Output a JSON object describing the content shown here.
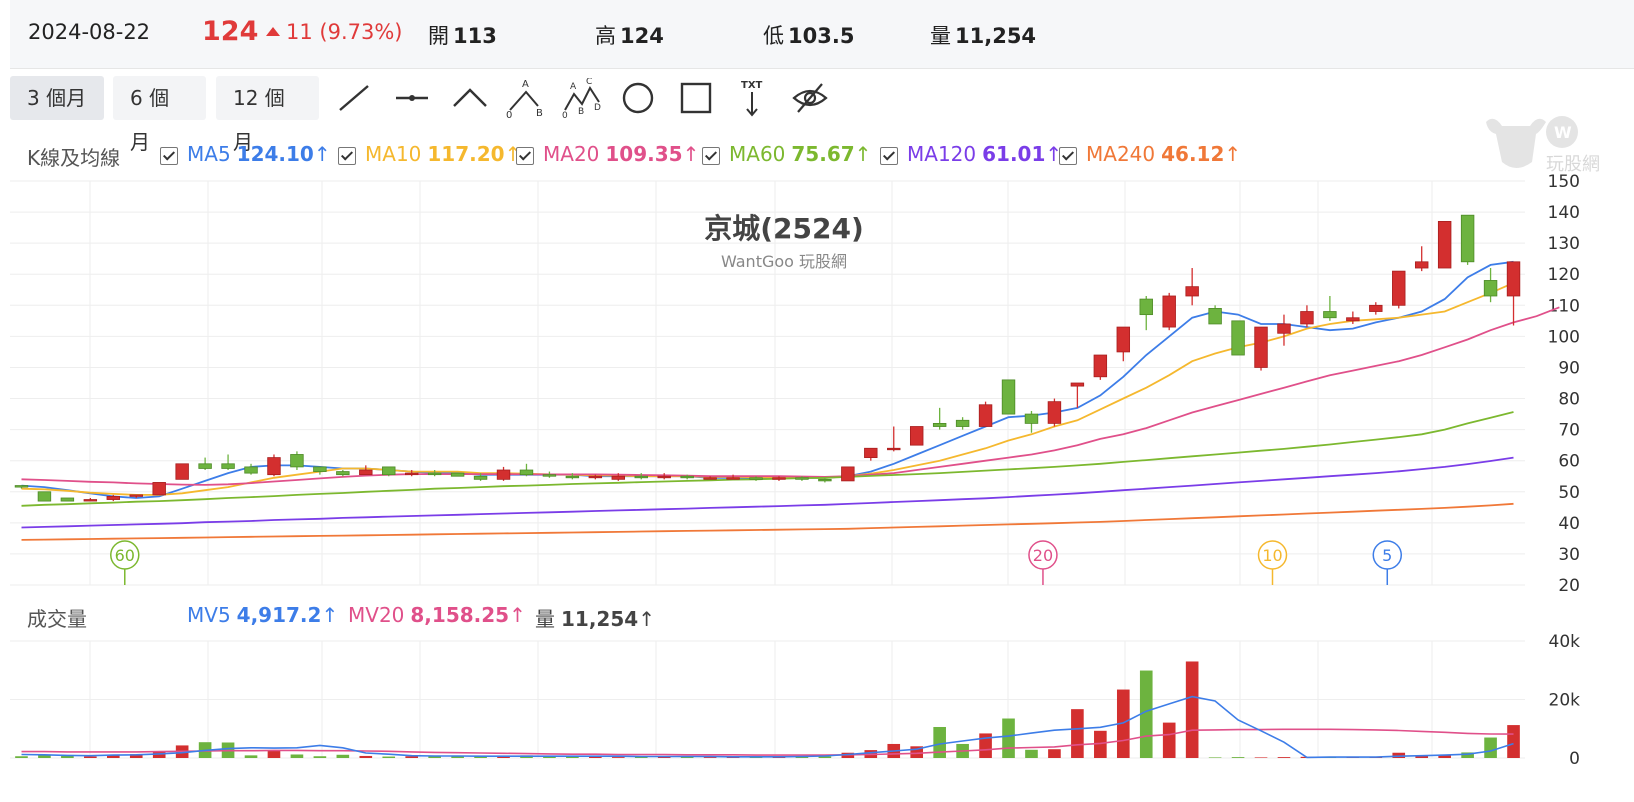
{
  "header": {
    "date": "2024-08-22",
    "price": "124",
    "change": "11 (9.73%)",
    "open_label": "開",
    "open": "113",
    "high_label": "高",
    "high": "124",
    "low_label": "低",
    "low": "103.5",
    "vol_label": "量",
    "vol": "11,254"
  },
  "toolbar": {
    "periods": [
      "3 個月",
      "6 個月",
      "12 個月"
    ],
    "tools": [
      "line-tool-icon",
      "horizontal-line-tool-icon",
      "angle-tool-icon",
      "abc-pattern-tool-icon",
      "abcd-pattern-tool-icon",
      "circle-tool-icon",
      "rectangle-tool-icon",
      "text-tool-icon",
      "hide-eye-icon"
    ],
    "tool_letters": {
      "a": "A",
      "b": "B",
      "c": "C",
      "d": "D",
      "zero": "0",
      "txt": "TXT"
    }
  },
  "watermark": {
    "brand": "玩股網"
  },
  "kline_legend": {
    "title": "K線及均線",
    "items": [
      {
        "name": "MA5",
        "value": "124.10",
        "arrow": "↑",
        "color": "#3d7de8"
      },
      {
        "name": "MA10",
        "value": "117.20",
        "arrow": "↑",
        "color": "#f5b82e"
      },
      {
        "name": "MA20",
        "value": "109.35",
        "arrow": "↑",
        "color": "#e0508a"
      },
      {
        "name": "MA60",
        "value": "75.67",
        "arrow": "↑",
        "color": "#7cb82f"
      },
      {
        "name": "MA120",
        "value": "61.01",
        "arrow": "↑",
        "color": "#7a3de8"
      },
      {
        "name": "MA240",
        "value": "46.12",
        "arrow": "↑",
        "color": "#f07838"
      }
    ]
  },
  "volume_legend": {
    "title": "成交量",
    "items": [
      {
        "name": "MV5",
        "value": "4,917.2",
        "arrow": "↑",
        "color": "#3d7de8"
      },
      {
        "name": "MV20",
        "value": "8,158.25",
        "arrow": "↑",
        "color": "#e0508a"
      },
      {
        "name": "量",
        "value": "11,254",
        "arrow": "↑",
        "color": "#444444"
      }
    ]
  },
  "colors": {
    "up": "#d32f2f",
    "down": "#6db33f",
    "grid": "#eeeeee"
  },
  "chart_data": [
    {
      "type": "candlestick",
      "title": "京城(2524)",
      "subtitle": "WantGoo 玩股網",
      "ylim": [
        20,
        150
      ],
      "yticks": [
        20,
        30,
        40,
        50,
        60,
        70,
        80,
        90,
        100,
        110,
        120,
        130,
        140,
        150
      ],
      "candles": [
        [
          52,
          52,
          51,
          51.5
        ],
        [
          50,
          50,
          47,
          47
        ],
        [
          48,
          48,
          47,
          47
        ],
        [
          47.5,
          48,
          47,
          47.5
        ],
        [
          47.5,
          49,
          47,
          48.5
        ],
        [
          48.5,
          49,
          48,
          49
        ],
        [
          49,
          53,
          49,
          53
        ],
        [
          54,
          59,
          54,
          59
        ],
        [
          59,
          61,
          57,
          57.5
        ],
        [
          59,
          62,
          57,
          57.5
        ],
        [
          58,
          59,
          55.5,
          56
        ],
        [
          55.5,
          62,
          55,
          61
        ],
        [
          62,
          63,
          57,
          58
        ],
        [
          58,
          58,
          55.5,
          56.5
        ],
        [
          56.5,
          57,
          55,
          55.5
        ],
        [
          55.5,
          58.5,
          55.5,
          57
        ],
        [
          58,
          58,
          55,
          55.5
        ],
        [
          55.5,
          57,
          55,
          56
        ],
        [
          56,
          57,
          55,
          55.5
        ],
        [
          56,
          56,
          55,
          55
        ],
        [
          55,
          56,
          53.5,
          54
        ],
        [
          54,
          58,
          53.5,
          57
        ],
        [
          57,
          59,
          55,
          55.5
        ],
        [
          55.5,
          56.5,
          54.5,
          55
        ],
        [
          55,
          56,
          54,
          54.5
        ],
        [
          54.5,
          55.5,
          54,
          55
        ],
        [
          54,
          56,
          53.5,
          55
        ],
        [
          55,
          56,
          54,
          54.5
        ],
        [
          54.5,
          56,
          54,
          55
        ],
        [
          55,
          55.5,
          54,
          54.5
        ],
        [
          54.5,
          55,
          54,
          54.5
        ],
        [
          54.5,
          55.5,
          54,
          54.5
        ],
        [
          54.5,
          55,
          53.5,
          54
        ],
        [
          54,
          55,
          53.5,
          54.5
        ],
        [
          54.5,
          55,
          53.5,
          54
        ],
        [
          54,
          54.5,
          53,
          53.5
        ],
        [
          53.5,
          58,
          53.5,
          58
        ],
        [
          61,
          64,
          60,
          64
        ],
        [
          64,
          71,
          63,
          64
        ],
        [
          65,
          71,
          65,
          71
        ],
        [
          72,
          77,
          70,
          71
        ],
        [
          73,
          74,
          70,
          71
        ],
        [
          71,
          79,
          71,
          78
        ],
        [
          86,
          86,
          75,
          75
        ],
        [
          75,
          76,
          69,
          72
        ],
        [
          72,
          80,
          71,
          79
        ],
        [
          84,
          85,
          77,
          85
        ],
        [
          87,
          94,
          86,
          94
        ],
        [
          95,
          103,
          92,
          103
        ],
        [
          112,
          113,
          102,
          107
        ],
        [
          103,
          114,
          102,
          113
        ],
        [
          113,
          122,
          110,
          116
        ],
        [
          109,
          110,
          104,
          104
        ],
        [
          105,
          105,
          94,
          94
        ],
        [
          90,
          103,
          89,
          103
        ],
        [
          101,
          107,
          97,
          104
        ],
        [
          104,
          110,
          103,
          108
        ],
        [
          108,
          113,
          105,
          106
        ],
        [
          105,
          108,
          104,
          106
        ],
        [
          108,
          111,
          107,
          110
        ],
        [
          110,
          121,
          109,
          121
        ],
        [
          122,
          129,
          121,
          124
        ],
        [
          122,
          137,
          122,
          137
        ],
        [
          139,
          139,
          123,
          124
        ],
        [
          118,
          122,
          111,
          113
        ],
        [
          113,
          124,
          103.5,
          124
        ]
      ],
      "ma": {
        "MA5": [
          52,
          51.5,
          50.5,
          49.5,
          48.5,
          48,
          48.5,
          51,
          53.5,
          56,
          58,
          58.5,
          58.5,
          58,
          57.5,
          57.5,
          57,
          56.5,
          56,
          56,
          55.5,
          55.5,
          55.5,
          55.5,
          55.5,
          55,
          55,
          55,
          55,
          55,
          54.5,
          54.5,
          54.5,
          54.5,
          54.5,
          54.5,
          55,
          56.5,
          59,
          62,
          65,
          68,
          71,
          74,
          74.5,
          75.5,
          77,
          81,
          87,
          94,
          100,
          106,
          108,
          107,
          104,
          104,
          103,
          102,
          102.5,
          104.5,
          106,
          108,
          112,
          119,
          123,
          124
        ],
        "MA10": [
          51,
          50.8,
          50.3,
          49.7,
          49.3,
          49,
          49,
          49.5,
          50.5,
          51.5,
          53,
          54.5,
          55.5,
          56.5,
          57.5,
          57.5,
          57,
          56.5,
          56.5,
          56.5,
          56,
          56,
          55.8,
          55.6,
          55.5,
          55.3,
          55.2,
          55,
          55,
          55,
          54.8,
          54.8,
          54.7,
          54.6,
          54.6,
          54.5,
          55,
          55.8,
          57,
          58.5,
          60,
          62,
          64,
          66.5,
          68.5,
          71,
          73,
          76.5,
          80,
          83.5,
          87.5,
          92,
          94.5,
          96.5,
          98,
          100,
          102.5,
          104,
          105,
          105.5,
          106,
          107,
          108,
          111,
          114,
          117.2
        ],
        "MA20": [
          54,
          53.8,
          53.5,
          53.2,
          53,
          52.7,
          52.5,
          52.3,
          52.2,
          52.4,
          52.8,
          53.3,
          53.8,
          54.3,
          54.8,
          55.2,
          55.5,
          55.7,
          55.7,
          55.7,
          55.7,
          55.7,
          55.6,
          55.6,
          55.6,
          55.6,
          55.5,
          55.4,
          55.3,
          55.2,
          55,
          55,
          55,
          55,
          54.9,
          54.8,
          55,
          55.5,
          56,
          57,
          58,
          59,
          60,
          61,
          62,
          63.3,
          65,
          67,
          68.5,
          70.5,
          73,
          75.5,
          77.5,
          79.5,
          81.5,
          83.5,
          85.5,
          87.5,
          89,
          90.5,
          92,
          94,
          96.5,
          99,
          102,
          104.5,
          106.5,
          109.35
        ],
        "MA60": [
          45.5,
          45.8,
          46,
          46.3,
          46.5,
          46.8,
          47,
          47.3,
          47.6,
          48,
          48.3,
          48.6,
          49,
          49.3,
          49.6,
          50,
          50.3,
          50.6,
          51,
          51.2,
          51.5,
          51.8,
          52,
          52.2,
          52.5,
          52.7,
          52.9,
          53.1,
          53.3,
          53.5,
          53.7,
          53.9,
          54,
          54.2,
          54.4,
          54.5,
          54.8,
          55.1,
          55.4,
          55.7,
          56,
          56.4,
          56.8,
          57.2,
          57.6,
          58,
          58.5,
          59,
          59.6,
          60.2,
          60.8,
          61.4,
          62,
          62.6,
          63.2,
          63.8,
          64.5,
          65.2,
          66,
          66.8,
          67.6,
          68.5,
          70,
          72,
          73.8,
          75.67
        ],
        "MA120": [
          38.5,
          38.7,
          38.9,
          39.1,
          39.3,
          39.5,
          39.7,
          39.9,
          40.2,
          40.4,
          40.6,
          40.9,
          41.1,
          41.3,
          41.6,
          41.8,
          42,
          42.2,
          42.4,
          42.6,
          42.8,
          43,
          43.2,
          43.4,
          43.6,
          43.8,
          44,
          44.2,
          44.4,
          44.6,
          44.8,
          45,
          45.2,
          45.4,
          45.6,
          45.8,
          46.1,
          46.4,
          46.7,
          47,
          47.3,
          47.6,
          47.9,
          48.3,
          48.7,
          49.1,
          49.5,
          50,
          50.5,
          51,
          51.5,
          52,
          52.5,
          53,
          53.5,
          54,
          54.5,
          55,
          55.5,
          56,
          56.6,
          57.3,
          58,
          58.9,
          59.9,
          61.01
        ],
        "MA240": [
          34.5,
          34.6,
          34.7,
          34.8,
          34.9,
          35,
          35.1,
          35.2,
          35.3,
          35.4,
          35.5,
          35.6,
          35.7,
          35.8,
          35.9,
          36,
          36.1,
          36.2,
          36.3,
          36.4,
          36.5,
          36.6,
          36.7,
          36.8,
          36.9,
          37,
          37.1,
          37.2,
          37.3,
          37.4,
          37.5,
          37.6,
          37.7,
          37.8,
          37.9,
          38,
          38.1,
          38.3,
          38.5,
          38.7,
          38.9,
          39.1,
          39.3,
          39.5,
          39.7,
          39.9,
          40.1,
          40.3,
          40.6,
          40.9,
          41.2,
          41.5,
          41.8,
          42.1,
          42.4,
          42.7,
          43,
          43.3,
          43.6,
          43.9,
          44.2,
          44.5,
          44.8,
          45.2,
          45.6,
          46.12
        ]
      },
      "markers": [
        {
          "label": "60",
          "index": 4.5,
          "color": "#7cb82f"
        },
        {
          "label": "20",
          "index": 44.5,
          "color": "#e0508a"
        },
        {
          "label": "10",
          "index": 54.5,
          "color": "#f5b82e"
        },
        {
          "label": "5",
          "index": 59.5,
          "color": "#3d7de8"
        }
      ]
    },
    {
      "type": "bar",
      "title": "成交量",
      "ylim": [
        0,
        40000
      ],
      "yticks": [
        0,
        20000,
        40000
      ],
      "ytick_labels": [
        "0",
        "20k",
        "40k"
      ],
      "volume": [
        600,
        1200,
        800,
        500,
        900,
        1300,
        2300,
        4300,
        5400,
        5300,
        900,
        2500,
        1200,
        600,
        1100,
        700,
        500,
        600,
        700,
        600,
        500,
        400,
        900,
        700,
        500,
        600,
        300,
        400,
        500,
        600,
        300,
        400,
        300,
        300,
        400,
        500,
        1800,
        2700,
        4800,
        4000,
        10600,
        4800,
        8400,
        13500,
        2800,
        3000,
        16700,
        9300,
        23400,
        29900,
        12100,
        33000,
        200,
        300,
        200,
        300,
        400,
        200,
        300,
        200,
        1800,
        1000,
        1200,
        1900,
        7000,
        11254
      ],
      "mv5": [
        1200,
        1100,
        900,
        800,
        1000,
        1100,
        1400,
        1800,
        2600,
        3200,
        3500,
        3400,
        3500,
        4300,
        3500,
        1700,
        1300,
        800,
        700,
        700,
        600,
        600,
        600,
        600,
        600,
        600,
        600,
        500,
        500,
        500,
        500,
        400,
        400,
        400,
        500,
        700,
        1200,
        1800,
        2400,
        3000,
        4800,
        5800,
        6800,
        7500,
        8500,
        9500,
        10000,
        10500,
        12000,
        16000,
        18500,
        21000,
        19500,
        13000,
        9300,
        5400,
        200,
        300,
        300,
        300,
        600,
        800,
        1000,
        1300,
        2400,
        4917.2
      ],
      "mv20": [
        2200,
        2200,
        2100,
        2100,
        2100,
        2100,
        2200,
        2300,
        2400,
        2500,
        2500,
        2600,
        2600,
        2500,
        2500,
        2400,
        2300,
        2100,
        1900,
        1800,
        1700,
        1600,
        1500,
        1400,
        1300,
        1300,
        1200,
        1200,
        1200,
        1100,
        1100,
        1100,
        1000,
        1000,
        1000,
        1000,
        1100,
        1200,
        1400,
        1600,
        2000,
        2400,
        2800,
        3400,
        3600,
        3800,
        4500,
        5000,
        6000,
        7500,
        8000,
        9500,
        9600,
        9700,
        9700,
        9800,
        9800,
        9800,
        9700,
        9600,
        9400,
        9100,
        8800,
        8400,
        8200,
        8158.25
      ]
    }
  ]
}
